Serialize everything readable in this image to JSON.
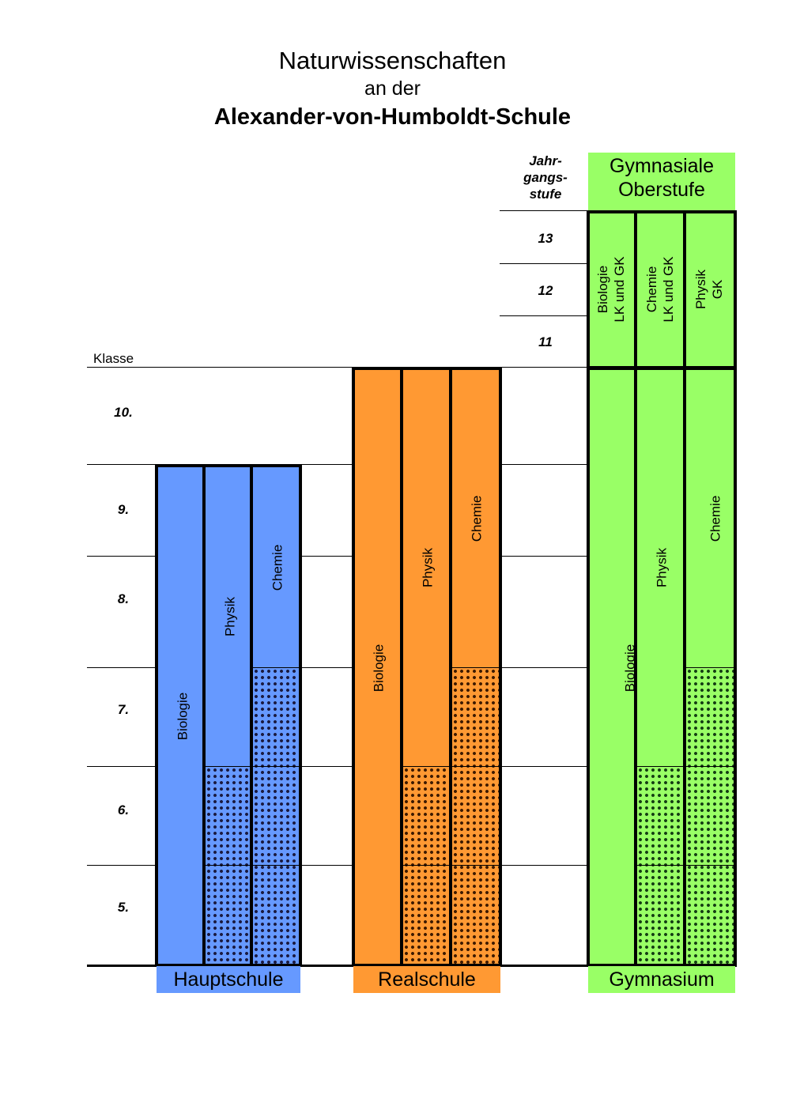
{
  "title": {
    "line1": "Naturwissenschaften",
    "line2": "an der",
    "line3": "Alexander-von-Humboldt-Schule"
  },
  "axis": {
    "klasse_label": "Klasse",
    "jahrgangsstufe_label": [
      "Jahr-",
      "gangs-",
      "stufe"
    ],
    "grades": [
      "10.",
      "9.",
      "8.",
      "7.",
      "6.",
      "5."
    ],
    "upper_grades": [
      "13",
      "12",
      "11"
    ]
  },
  "schools": {
    "hauptschule": {
      "name": "Hauptschule",
      "color": "#6699ff",
      "subjects": [
        "Biologie",
        "Physik",
        "Chemie"
      ]
    },
    "realschule": {
      "name": "Realschule",
      "color": "#ff9933",
      "subjects": [
        "Biologie",
        "Physik",
        "Chemie"
      ]
    },
    "gymnasium": {
      "name": "Gymnasium",
      "color": "#99ff66",
      "subjects": [
        "Biologie",
        "Physik",
        "Chemie"
      ],
      "oberstufe_title": [
        "Gymnasiale",
        "Oberstufe"
      ],
      "oberstufe_subjects": [
        [
          "Biologie",
          "LK und GK"
        ],
        [
          "Chemie",
          "LK und GK"
        ],
        [
          "Physik",
          "GK"
        ]
      ]
    }
  }
}
